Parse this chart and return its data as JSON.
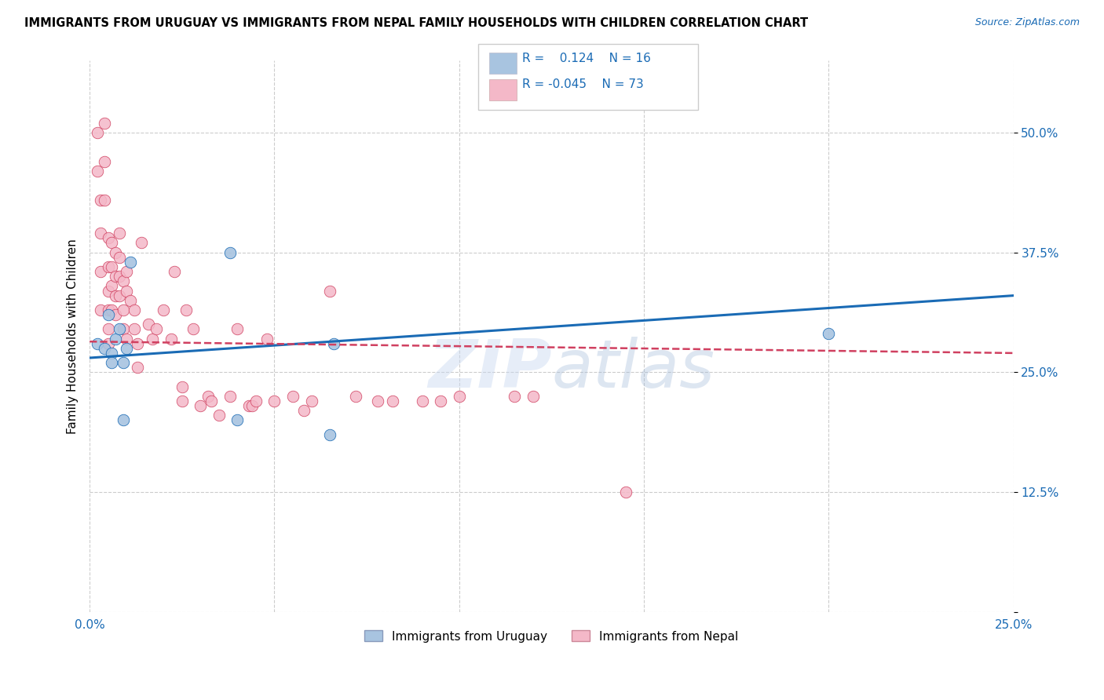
{
  "title": "IMMIGRANTS FROM URUGUAY VS IMMIGRANTS FROM NEPAL FAMILY HOUSEHOLDS WITH CHILDREN CORRELATION CHART",
  "source": "Source: ZipAtlas.com",
  "ylabel": "Family Households with Children",
  "xlim": [
    0.0,
    0.25
  ],
  "ylim": [
    0.0,
    0.575
  ],
  "xticks": [
    0.0,
    0.05,
    0.1,
    0.15,
    0.2,
    0.25
  ],
  "xticklabels": [
    "0.0%",
    "",
    "",
    "",
    "",
    "25.0%"
  ],
  "yticks": [
    0.0,
    0.125,
    0.25,
    0.375,
    0.5
  ],
  "yticklabels": [
    "",
    "12.5%",
    "25.0%",
    "37.5%",
    "50.0%"
  ],
  "legend_r_uruguay": "0.124",
  "legend_n_uruguay": "16",
  "legend_r_nepal": "-0.045",
  "legend_n_nepal": "73",
  "watermark": "ZIPatlas",
  "color_uruguay": "#a8c4e0",
  "color_nepal": "#f4b8c8",
  "color_trend_uruguay": "#1a6bb5",
  "color_trend_nepal": "#d04060",
  "trend_uruguay_x0": 0.0,
  "trend_uruguay_y0": 0.265,
  "trend_uruguay_x1": 0.25,
  "trend_uruguay_y1": 0.33,
  "trend_nepal_x0": 0.0,
  "trend_nepal_y0": 0.282,
  "trend_nepal_x1": 0.25,
  "trend_nepal_y1": 0.27,
  "uruguay_x": [
    0.002,
    0.004,
    0.005,
    0.006,
    0.006,
    0.007,
    0.008,
    0.009,
    0.009,
    0.01,
    0.011,
    0.038,
    0.04,
    0.065,
    0.066,
    0.2
  ],
  "uruguay_y": [
    0.28,
    0.275,
    0.31,
    0.27,
    0.26,
    0.285,
    0.295,
    0.26,
    0.2,
    0.275,
    0.365,
    0.375,
    0.2,
    0.185,
    0.28,
    0.29
  ],
  "nepal_x": [
    0.002,
    0.002,
    0.003,
    0.003,
    0.003,
    0.003,
    0.004,
    0.004,
    0.004,
    0.005,
    0.005,
    0.005,
    0.005,
    0.005,
    0.005,
    0.006,
    0.006,
    0.006,
    0.006,
    0.007,
    0.007,
    0.007,
    0.007,
    0.008,
    0.008,
    0.008,
    0.008,
    0.009,
    0.009,
    0.009,
    0.01,
    0.01,
    0.01,
    0.011,
    0.012,
    0.012,
    0.013,
    0.013,
    0.014,
    0.016,
    0.017,
    0.018,
    0.02,
    0.022,
    0.023,
    0.025,
    0.025,
    0.026,
    0.028,
    0.03,
    0.032,
    0.033,
    0.035,
    0.038,
    0.04,
    0.043,
    0.044,
    0.045,
    0.048,
    0.05,
    0.055,
    0.058,
    0.06,
    0.065,
    0.072,
    0.078,
    0.082,
    0.09,
    0.095,
    0.1,
    0.115,
    0.12,
    0.145
  ],
  "nepal_y": [
    0.5,
    0.46,
    0.43,
    0.395,
    0.355,
    0.315,
    0.51,
    0.47,
    0.43,
    0.39,
    0.36,
    0.335,
    0.315,
    0.295,
    0.28,
    0.385,
    0.36,
    0.34,
    0.315,
    0.375,
    0.35,
    0.33,
    0.31,
    0.395,
    0.37,
    0.35,
    0.33,
    0.345,
    0.315,
    0.295,
    0.355,
    0.335,
    0.285,
    0.325,
    0.315,
    0.295,
    0.28,
    0.255,
    0.385,
    0.3,
    0.285,
    0.295,
    0.315,
    0.285,
    0.355,
    0.235,
    0.22,
    0.315,
    0.295,
    0.215,
    0.225,
    0.22,
    0.205,
    0.225,
    0.295,
    0.215,
    0.215,
    0.22,
    0.285,
    0.22,
    0.225,
    0.21,
    0.22,
    0.335,
    0.225,
    0.22,
    0.22,
    0.22,
    0.22,
    0.225,
    0.225,
    0.225,
    0.125
  ]
}
